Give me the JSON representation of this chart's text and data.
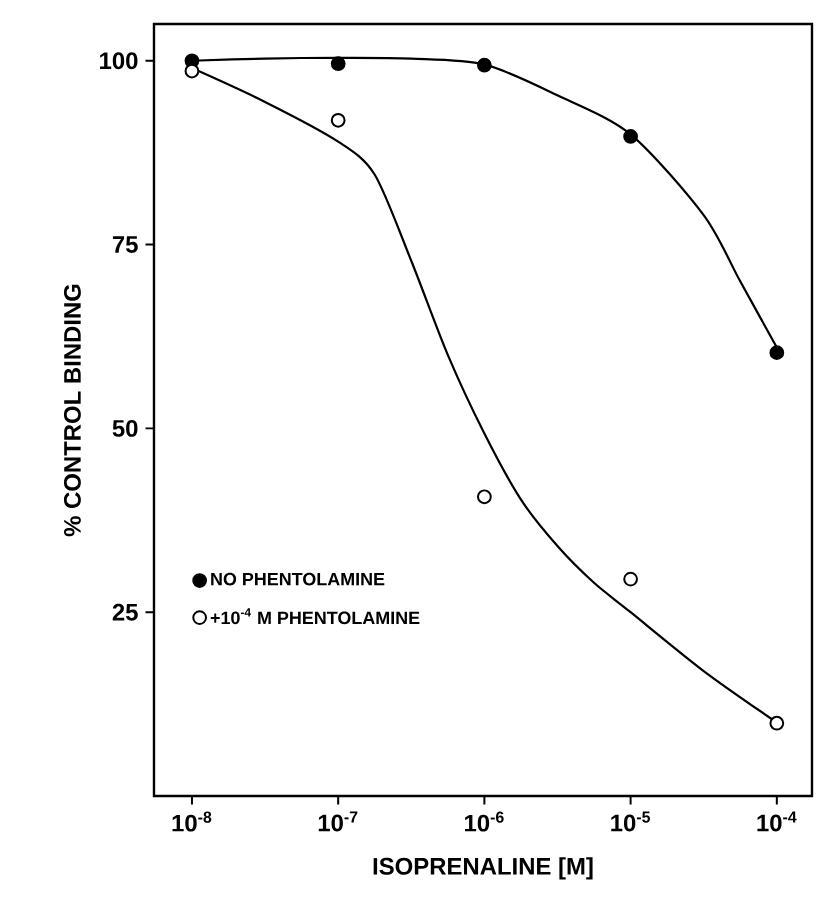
{
  "chart_data": {
    "type": "scatter",
    "xlabel": "ISOPRENALINE [M]",
    "ylabel": "% CONTROL BINDING",
    "log": "x",
    "xlim": [
      5.5e-09,
      0.000174
    ],
    "ylim": [
      0,
      105
    ],
    "xticks": [
      {
        "value": 1e-08,
        "label": "10$^{-8}$"
      },
      {
        "value": 1e-07,
        "label": "10$^{-7}$"
      },
      {
        "value": 1e-06,
        "label": "10$^{-6}$"
      },
      {
        "value": 1e-05,
        "label": "10$^{-5}$"
      },
      {
        "value": 0.0001,
        "label": "10$^{-4}$"
      }
    ],
    "yticks": [
      25,
      50,
      75,
      100
    ],
    "legend": "bottom left",
    "marker": "circle",
    "series": [
      {
        "name": "NO PHENTOLAMINE",
        "color": "#000000",
        "x": [
          1e-08,
          1e-07,
          1e-06,
          1e-05,
          0.0001
        ],
        "values": [
          100,
          99.6,
          99.4,
          89.7,
          60.3
        ]
      },
      {
        "name": "+10$^{-4}$ M PHENTOLAMINE",
        "color": "#ffffff",
        "x": [
          1e-08,
          1e-07,
          1e-06,
          1e-05,
          0.0001
        ],
        "values": [
          98.6,
          91.9,
          40.7,
          29.5,
          9.9
        ]
      },
      {
        "type": "line",
        "color": "#000000",
        "marker": "none",
        "x": [
          1e-08,
          3.16e-08,
          1e-07,
          3.16e-07,
          1e-06,
          3.16e-06,
          1e-05,
          3.16e-05,
          5.62e-05,
          0.0001
        ],
        "values": [
          100,
          100.3,
          100.4,
          100.3,
          99.5,
          95.3,
          90,
          79,
          70,
          61
        ]
      },
      {
        "type": "line",
        "color": "#000000",
        "marker": "none",
        "x": [
          1e-08,
          3.16e-08,
          1e-07,
          1.78e-07,
          3.16e-07,
          5.62e-07,
          1e-06,
          1.78e-06,
          3.16e-06,
          5.62e-06,
          1e-05,
          3.16e-05,
          0.0001
        ],
        "values": [
          99,
          94.4,
          89,
          84.5,
          72.8,
          60,
          49.3,
          40.3,
          34,
          29,
          25,
          17,
          10
        ]
      }
    ]
  }
}
